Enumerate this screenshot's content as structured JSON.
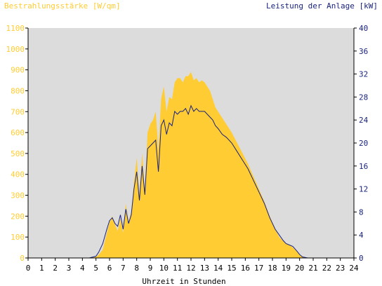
{
  "chart_data": {
    "type": "area",
    "left_axis_label": "Bestrahlungsstärke [W/qm]",
    "right_axis_label": "Leistung der Anlage [kW]",
    "xlabel": "Uhrzeit in Stunden",
    "x_ticks": [
      "0",
      "1",
      "2",
      "3",
      "4",
      "5",
      "6",
      "7",
      "8",
      "9",
      "10",
      "11",
      "12",
      "13",
      "14",
      "15",
      "16",
      "17",
      "18",
      "19",
      "20",
      "21",
      "22",
      "23",
      "24"
    ],
    "y_left_ticks": [
      "0",
      "100",
      "200",
      "300",
      "400",
      "500",
      "600",
      "700",
      "800",
      "900",
      "1000",
      "1100"
    ],
    "y_right_ticks": [
      "0",
      "4",
      "8",
      "12",
      "16",
      "20",
      "24",
      "28",
      "32",
      "36",
      "40"
    ],
    "xlim": [
      0,
      24
    ],
    "ylim_left": [
      0,
      1100
    ],
    "ylim_right": [
      0,
      40
    ],
    "grid": false,
    "series": [
      {
        "name": "Bestrahlungsstärke",
        "axis": "left",
        "color": "#ffcc33",
        "x": [
          0,
          4.5,
          5.0,
          5.2,
          5.5,
          5.8,
          6.0,
          6.2,
          6.4,
          6.6,
          6.8,
          7.0,
          7.2,
          7.4,
          7.6,
          7.8,
          8.0,
          8.2,
          8.4,
          8.6,
          8.8,
          9.0,
          9.2,
          9.4,
          9.6,
          9.8,
          10.0,
          10.2,
          10.4,
          10.6,
          10.8,
          11.0,
          11.2,
          11.4,
          11.6,
          11.8,
          12.0,
          12.2,
          12.4,
          12.6,
          12.8,
          13.0,
          13.2,
          13.4,
          13.6,
          13.8,
          14.0,
          14.3,
          14.6,
          15.0,
          15.4,
          15.8,
          16.2,
          16.6,
          17.0,
          17.4,
          17.8,
          18.2,
          18.5,
          18.8,
          19.0,
          19.2,
          19.5,
          19.8,
          20.0,
          20.2,
          20.4,
          20.6,
          21.0,
          24
        ],
        "values": [
          0,
          0,
          5,
          15,
          40,
          120,
          170,
          200,
          160,
          130,
          190,
          120,
          260,
          170,
          220,
          360,
          480,
          300,
          500,
          330,
          600,
          640,
          660,
          700,
          520,
          760,
          820,
          700,
          770,
          760,
          840,
          860,
          860,
          840,
          870,
          870,
          890,
          850,
          860,
          840,
          850,
          840,
          820,
          800,
          760,
          720,
          700,
          670,
          640,
          600,
          550,
          500,
          450,
          390,
          330,
          270,
          200,
          140,
          100,
          80,
          70,
          65,
          50,
          30,
          15,
          5,
          2,
          0,
          0,
          0
        ]
      },
      {
        "name": "Leistung der Anlage",
        "axis": "right",
        "color": "#1a237e",
        "x": [
          0,
          4.5,
          5.0,
          5.2,
          5.5,
          5.8,
          6.0,
          6.2,
          6.4,
          6.6,
          6.8,
          7.0,
          7.2,
          7.4,
          7.6,
          7.8,
          8.0,
          8.2,
          8.4,
          8.6,
          8.8,
          9.0,
          9.2,
          9.4,
          9.6,
          9.8,
          10.0,
          10.2,
          10.4,
          10.6,
          10.8,
          11.0,
          11.2,
          11.4,
          11.6,
          11.8,
          12.0,
          12.2,
          12.4,
          12.6,
          12.8,
          13.0,
          13.2,
          13.4,
          13.6,
          13.8,
          14.0,
          14.3,
          14.6,
          15.0,
          15.4,
          15.8,
          16.2,
          16.6,
          17.0,
          17.4,
          17.8,
          18.2,
          18.5,
          18.8,
          19.0,
          19.2,
          19.5,
          19.8,
          20.0,
          20.2,
          20.4,
          20.6,
          21.0,
          24
        ],
        "values": [
          0,
          0,
          0.3,
          1.0,
          2.5,
          5.0,
          6.5,
          7.0,
          6.0,
          5.5,
          7.5,
          5.0,
          8.5,
          6.0,
          7.5,
          12.0,
          15.0,
          10.0,
          16.0,
          11.0,
          19.0,
          19.5,
          20.0,
          20.5,
          15.0,
          23.0,
          24.0,
          21.5,
          23.5,
          23.0,
          25.5,
          25.0,
          25.5,
          25.5,
          26.0,
          25.0,
          26.5,
          25.5,
          26.0,
          25.5,
          25.5,
          25.5,
          25.0,
          24.5,
          24.0,
          23.0,
          22.5,
          21.5,
          21.0,
          20.0,
          18.5,
          17.0,
          15.5,
          13.5,
          11.5,
          9.5,
          7.0,
          5.0,
          4.0,
          3.0,
          2.5,
          2.3,
          2.0,
          1.2,
          0.6,
          0.2,
          0.1,
          0,
          0,
          0
        ]
      }
    ]
  }
}
